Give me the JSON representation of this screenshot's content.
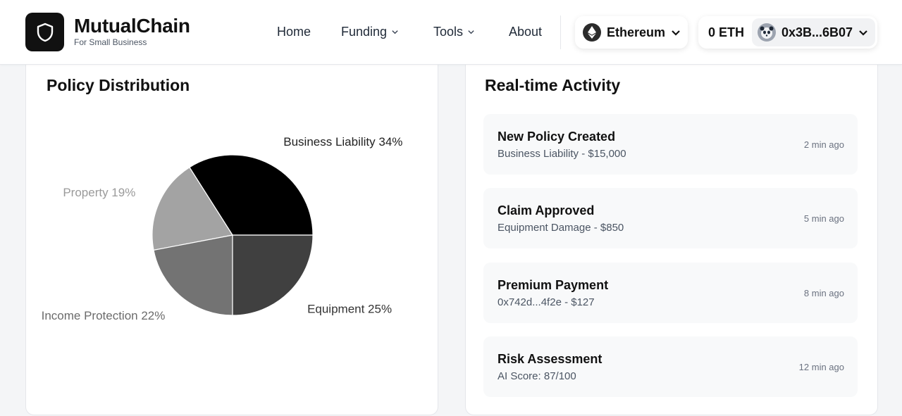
{
  "header": {
    "brand_name": "MutualChain",
    "brand_tagline": "For Small Business",
    "logo_icon": "shield-icon",
    "nav": {
      "home": "Home",
      "funding": "Funding",
      "tools": "Tools",
      "about": "About"
    },
    "network": {
      "label": "Ethereum",
      "icon": "ethereum-icon"
    },
    "wallet": {
      "balance": "0 ETH",
      "address": "0x3B...6B07",
      "avatar_icon": "panda-avatar-icon"
    }
  },
  "policy_distribution": {
    "title": "Policy Distribution",
    "chart_data": {
      "type": "pie",
      "title": "",
      "slices": [
        {
          "label": "Business Liability 34%",
          "value": 34,
          "color": "#000000",
          "label_color": "#222222"
        },
        {
          "label": "Property 19%",
          "value": 19,
          "color": "#a3a3a3",
          "label_color": "#9a9a9a"
        },
        {
          "label": "Income Protection 22%",
          "value": 22,
          "color": "#737373",
          "label_color": "#6b6b6b"
        },
        {
          "label": "Equipment 25%",
          "value": 25,
          "color": "#404040",
          "label_color": "#333333"
        }
      ]
    }
  },
  "activity": {
    "title": "Real-time Activity",
    "items": [
      {
        "title": "New Policy Created",
        "detail": "Business Liability - $15,000",
        "time": "2 min ago"
      },
      {
        "title": "Claim Approved",
        "detail": "Equipment Damage - $850",
        "time": "5 min ago"
      },
      {
        "title": "Premium Payment",
        "detail": "0x742d...4f2e - $127",
        "time": "8 min ago"
      },
      {
        "title": "Risk Assessment",
        "detail": "AI Score: 87/100",
        "time": "12 min ago"
      }
    ]
  }
}
